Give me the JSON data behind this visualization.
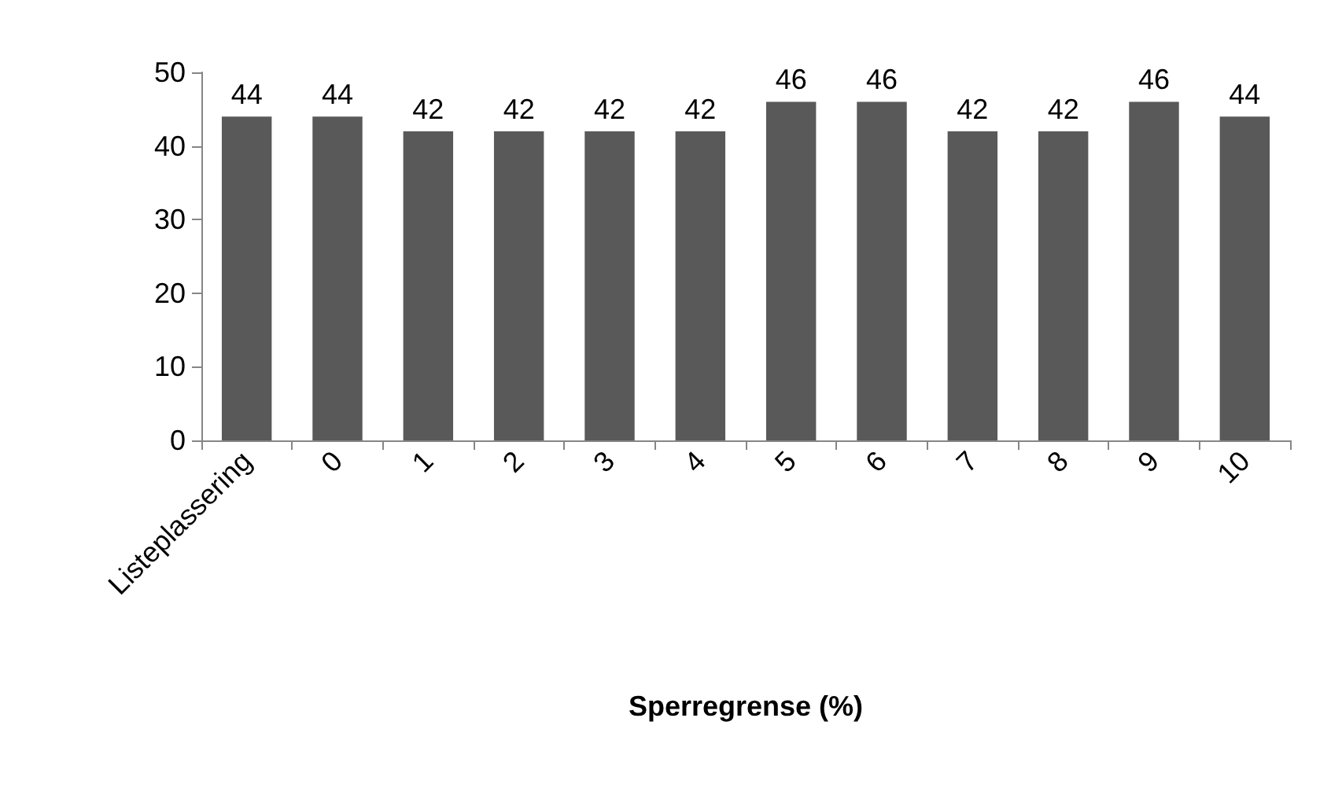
{
  "chart_data": {
    "type": "bar",
    "xlabel": "Sperregrense (%)",
    "categories": [
      "Listeplassering",
      "0",
      "1",
      "2",
      "3",
      "4",
      "5",
      "6",
      "7",
      "8",
      "9",
      "10"
    ],
    "values": [
      44,
      44,
      42,
      42,
      42,
      42,
      46,
      46,
      42,
      42,
      46,
      44
    ],
    "color": "#595959",
    "ylim": [
      0,
      50
    ],
    "yticks": [
      0,
      10,
      20,
      30,
      40,
      50
    ],
    "grid": false,
    "data_labels": true
  }
}
